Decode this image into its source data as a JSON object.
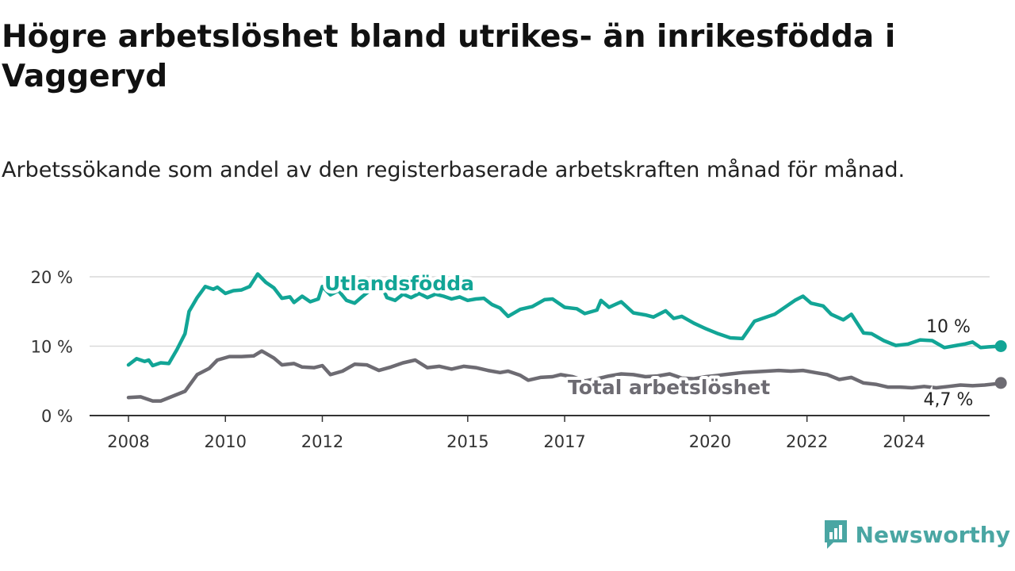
{
  "title": "Högre arbetslöshet bland utrikes- än inrikesfödda i Vaggeryd",
  "subtitle": "Arbetssökande som andel av den registerbaserade arbetskraften månad för månad.",
  "brand": "Newsworthy",
  "brand_icon": "newsworthy-logo-icon",
  "colors": {
    "utlandsfodda": "#12a596",
    "total": "#6d6b72",
    "grid": "#d9d9d9",
    "axis": "#333333",
    "brand": "#4aa6a3"
  },
  "chart_data": {
    "type": "line",
    "title": "Högre arbetslöshet bland utrikes- än inrikesfödda i Vaggeryd",
    "subtitle": "Arbetssökande som andel av den registerbaserade arbetskraften månad för månad.",
    "ylim": [
      0,
      20
    ],
    "xlim": [
      "2008-01",
      "2025-07"
    ],
    "y_ticks": [
      0,
      10,
      20
    ],
    "y_tick_labels": [
      "0 %",
      "10 %",
      "20 %"
    ],
    "x_ticks": [
      2008,
      2010,
      2012,
      2015,
      2017,
      2020,
      2022,
      2024
    ],
    "x_tick_labels": [
      "2008",
      "2010",
      "2012",
      "2015",
      "2017",
      "2020",
      "2022",
      "2024"
    ],
    "grid": true,
    "series": [
      {
        "name": "Utlandsfödda",
        "end_label": "10 %",
        "points": [
          [
            "2008-01",
            7.3
          ],
          [
            "2008-03",
            8.2
          ],
          [
            "2008-05",
            7.8
          ],
          [
            "2008-06",
            8.0
          ],
          [
            "2008-07",
            7.2
          ],
          [
            "2008-09",
            7.6
          ],
          [
            "2008-11",
            7.5
          ],
          [
            "2009-01",
            9.5
          ],
          [
            "2009-03",
            11.8
          ],
          [
            "2009-04",
            15.0
          ],
          [
            "2009-06",
            17.0
          ],
          [
            "2009-08",
            18.6
          ],
          [
            "2009-10",
            18.2
          ],
          [
            "2009-11",
            18.5
          ],
          [
            "2010-01",
            17.6
          ],
          [
            "2010-03",
            18.0
          ],
          [
            "2010-05",
            18.1
          ],
          [
            "2010-07",
            18.6
          ],
          [
            "2010-09",
            20.4
          ],
          [
            "2010-11",
            19.2
          ],
          [
            "2011-01",
            18.4
          ],
          [
            "2011-03",
            16.9
          ],
          [
            "2011-05",
            17.1
          ],
          [
            "2011-06",
            16.3
          ],
          [
            "2011-08",
            17.2
          ],
          [
            "2011-10",
            16.4
          ],
          [
            "2011-12",
            16.8
          ],
          [
            "2012-01",
            18.6
          ],
          [
            "2012-03",
            17.4
          ],
          [
            "2012-05",
            18.0
          ],
          [
            "2012-07",
            16.6
          ],
          [
            "2012-09",
            16.2
          ],
          [
            "2012-11",
            17.2
          ],
          [
            "2013-01",
            18.1
          ],
          [
            "2013-03",
            19.6
          ],
          [
            "2013-05",
            17.0
          ],
          [
            "2013-07",
            16.6
          ],
          [
            "2013-09",
            17.5
          ],
          [
            "2013-11",
            17.0
          ],
          [
            "2014-01",
            17.6
          ],
          [
            "2014-03",
            17.0
          ],
          [
            "2014-05",
            17.5
          ],
          [
            "2014-07",
            17.2
          ],
          [
            "2014-09",
            16.8
          ],
          [
            "2014-11",
            17.1
          ],
          [
            "2015-01",
            16.6
          ],
          [
            "2015-03",
            16.8
          ],
          [
            "2015-05",
            16.9
          ],
          [
            "2015-07",
            16.0
          ],
          [
            "2015-09",
            15.5
          ],
          [
            "2015-11",
            14.3
          ],
          [
            "2016-02",
            15.3
          ],
          [
            "2016-05",
            15.7
          ],
          [
            "2016-08",
            16.7
          ],
          [
            "2016-10",
            16.8
          ],
          [
            "2017-01",
            15.6
          ],
          [
            "2017-04",
            15.4
          ],
          [
            "2017-06",
            14.7
          ],
          [
            "2017-09",
            15.2
          ],
          [
            "2017-10",
            16.6
          ],
          [
            "2017-12",
            15.6
          ],
          [
            "2018-03",
            16.4
          ],
          [
            "2018-06",
            14.8
          ],
          [
            "2018-09",
            14.5
          ],
          [
            "2018-11",
            14.2
          ],
          [
            "2019-02",
            15.1
          ],
          [
            "2019-04",
            14.0
          ],
          [
            "2019-06",
            14.3
          ],
          [
            "2019-09",
            13.3
          ],
          [
            "2019-12",
            12.5
          ],
          [
            "2020-03",
            11.8
          ],
          [
            "2020-06",
            11.2
          ],
          [
            "2020-09",
            11.1
          ],
          [
            "2020-12",
            13.6
          ],
          [
            "2021-03",
            14.2
          ],
          [
            "2021-05",
            14.6
          ],
          [
            "2021-08",
            15.8
          ],
          [
            "2021-10",
            16.6
          ],
          [
            "2021-12",
            17.2
          ],
          [
            "2022-02",
            16.2
          ],
          [
            "2022-05",
            15.8
          ],
          [
            "2022-07",
            14.6
          ],
          [
            "2022-10",
            13.8
          ],
          [
            "2022-12",
            14.6
          ],
          [
            "2023-03",
            11.9
          ],
          [
            "2023-05",
            11.8
          ],
          [
            "2023-08",
            10.8
          ],
          [
            "2023-11",
            10.1
          ],
          [
            "2024-02",
            10.3
          ],
          [
            "2024-05",
            10.9
          ],
          [
            "2024-08",
            10.8
          ],
          [
            "2024-11",
            9.8
          ],
          [
            "2025-02",
            10.1
          ],
          [
            "2025-04",
            10.3
          ],
          [
            "2025-06",
            10.6
          ],
          [
            "2025-08",
            9.8
          ],
          [
            "2025-10",
            9.9
          ],
          [
            "2026-01",
            10.0
          ]
        ]
      },
      {
        "name": "Total arbetslöshet",
        "end_label": "4,7 %",
        "points": [
          [
            "2008-01",
            2.6
          ],
          [
            "2008-04",
            2.7
          ],
          [
            "2008-07",
            2.1
          ],
          [
            "2008-09",
            2.1
          ],
          [
            "2008-12",
            2.8
          ],
          [
            "2009-03",
            3.5
          ],
          [
            "2009-06",
            5.9
          ],
          [
            "2009-09",
            6.8
          ],
          [
            "2009-11",
            8.0
          ],
          [
            "2010-02",
            8.5
          ],
          [
            "2010-05",
            8.5
          ],
          [
            "2010-08",
            8.6
          ],
          [
            "2010-10",
            9.3
          ],
          [
            "2011-01",
            8.3
          ],
          [
            "2011-03",
            7.3
          ],
          [
            "2011-06",
            7.5
          ],
          [
            "2011-08",
            7.0
          ],
          [
            "2011-11",
            6.9
          ],
          [
            "2012-01",
            7.2
          ],
          [
            "2012-03",
            5.9
          ],
          [
            "2012-06",
            6.4
          ],
          [
            "2012-09",
            7.4
          ],
          [
            "2012-12",
            7.3
          ],
          [
            "2013-03",
            6.5
          ],
          [
            "2013-06",
            7.0
          ],
          [
            "2013-09",
            7.6
          ],
          [
            "2013-12",
            8.0
          ],
          [
            "2014-03",
            6.9
          ],
          [
            "2014-06",
            7.1
          ],
          [
            "2014-09",
            6.7
          ],
          [
            "2014-12",
            7.1
          ],
          [
            "2015-03",
            6.9
          ],
          [
            "2015-06",
            6.5
          ],
          [
            "2015-09",
            6.2
          ],
          [
            "2015-11",
            6.4
          ],
          [
            "2016-02",
            5.8
          ],
          [
            "2016-04",
            5.1
          ],
          [
            "2016-07",
            5.5
          ],
          [
            "2016-10",
            5.6
          ],
          [
            "2016-12",
            5.9
          ],
          [
            "2017-03",
            5.6
          ],
          [
            "2017-06",
            5.0
          ],
          [
            "2017-09",
            5.3
          ],
          [
            "2017-12",
            5.7
          ],
          [
            "2018-03",
            6.0
          ],
          [
            "2018-06",
            5.9
          ],
          [
            "2018-09",
            5.6
          ],
          [
            "2018-12",
            5.7
          ],
          [
            "2019-03",
            6.0
          ],
          [
            "2019-06",
            5.4
          ],
          [
            "2019-09",
            5.3
          ],
          [
            "2019-12",
            5.6
          ],
          [
            "2020-03",
            5.8
          ],
          [
            "2020-06",
            6.0
          ],
          [
            "2020-09",
            6.2
          ],
          [
            "2020-12",
            6.3
          ],
          [
            "2021-03",
            6.4
          ],
          [
            "2021-06",
            6.5
          ],
          [
            "2021-09",
            6.4
          ],
          [
            "2021-12",
            6.5
          ],
          [
            "2022-03",
            6.2
          ],
          [
            "2022-06",
            5.9
          ],
          [
            "2022-09",
            5.2
          ],
          [
            "2022-12",
            5.5
          ],
          [
            "2023-03",
            4.7
          ],
          [
            "2023-06",
            4.5
          ],
          [
            "2023-09",
            4.1
          ],
          [
            "2023-12",
            4.1
          ],
          [
            "2024-03",
            4.0
          ],
          [
            "2024-06",
            4.2
          ],
          [
            "2024-09",
            4.0
          ],
          [
            "2024-12",
            4.2
          ],
          [
            "2025-03",
            4.4
          ],
          [
            "2025-06",
            4.3
          ],
          [
            "2025-09",
            4.4
          ],
          [
            "2025-12",
            4.6
          ],
          [
            "2026-01",
            4.7
          ]
        ]
      }
    ]
  }
}
